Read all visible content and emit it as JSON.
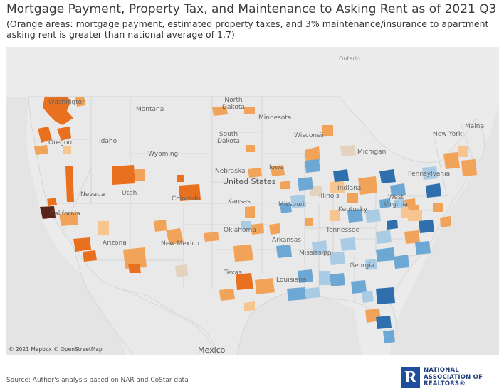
{
  "title": "Mortgage Payment, Property Tax, and Maintenance to Asking Rent as of 2021 Q3",
  "subtitle": "(Orange areas: mortgage payment, estimated property taxes, and 3% maintenance/insurance to apartment asking rent is greater than national average of 1.7)",
  "map": {
    "labels": {
      "country_us": "United States",
      "country_mexico": "Mexico",
      "ontario": "Ontario",
      "washington": "Washington",
      "oregon": "Oregon",
      "california": "California",
      "nevada": "Nevada",
      "idaho": "Idaho",
      "montana": "Montana",
      "wyoming": "Wyoming",
      "utah": "Utah",
      "colorado": "Colorado",
      "arizona": "Arizona",
      "new_mexico": "New Mexico",
      "north_dakota": "North Dakota",
      "south_dakota": "South Dakota",
      "nebraska": "Nebraska",
      "kansas": "Kansas",
      "oklahoma": "Oklahoma",
      "texas": "Texas",
      "minnesota": "Minnesota",
      "iowa": "Iowa",
      "missouri": "Missouri",
      "arkansas": "Arkansas",
      "louisiana": "Louisiana",
      "wisconsin": "Wisconsin",
      "michigan": "Michigan",
      "illinois": "Illinois",
      "indiana": "Indiana",
      "kentucky": "Kentucky",
      "tennessee": "Tennessee",
      "mississippi": "Mississippi",
      "georgia": "Georgia",
      "pennsylvania": "Pennsylvania",
      "new_york": "New York",
      "west_virginia": "West Virginia",
      "maine": "Maine"
    },
    "legend_colors": {
      "above_high": "#e8701e",
      "above_mid": "#f2a35a",
      "above_low": "#f7c58f",
      "near": "#e3d2be",
      "below_low": "#a9cbe3",
      "below_mid": "#6da7d3",
      "below_high": "#2f6fae"
    },
    "copyright": "© 2021 Mapbox © OpenStreetMap"
  },
  "source": "Source: Author's analysis based on NAR and CoStar data",
  "logo": {
    "mark": "R",
    "line1": "NATIONAL",
    "line2": "ASSOCIATION OF",
    "line3": "REALTORS®"
  }
}
